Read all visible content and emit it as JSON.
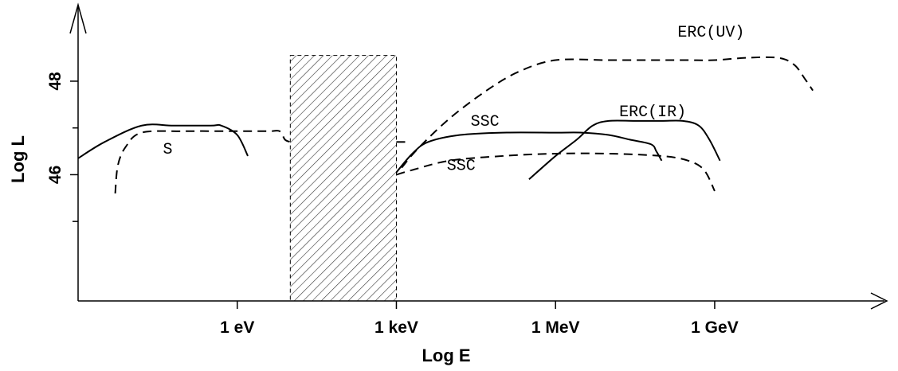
{
  "chart_data": {
    "type": "line",
    "title": "",
    "xlabel": "Log E",
    "ylabel": "Log L",
    "x_ticks": [
      {
        "label": "1 eV",
        "x": 0
      },
      {
        "label": "1 keV",
        "x": 3
      },
      {
        "label": "1 MeV",
        "x": 6
      },
      {
        "label": "1 GeV",
        "x": 9
      }
    ],
    "y_ticks": [
      {
        "label": "46",
        "y": 46
      },
      {
        "label": "48",
        "y": 48
      }
    ],
    "y_minor_ticks": [
      45,
      47
    ],
    "xlim": [
      -3,
      12.2
    ],
    "ylim": [
      43.3,
      49.6
    ],
    "grid": false,
    "shaded_band": {
      "x_range": [
        1,
        3
      ],
      "y_top": 48.55,
      "pattern": "diagonal-hatch"
    },
    "series": [
      {
        "label": "S",
        "style": "solid",
        "points": [
          [
            -3,
            46.35
          ],
          [
            -2.5,
            46.7
          ],
          [
            -1.8,
            47.05
          ],
          [
            -1.2,
            47.05
          ],
          [
            -0.5,
            47.05
          ],
          [
            -0.3,
            47.05
          ],
          [
            0,
            46.85
          ],
          [
            0.2,
            46.4
          ]
        ]
      },
      {
        "label": "",
        "style": "dashed",
        "points": [
          [
            -2.3,
            45.6
          ],
          [
            -2.25,
            46.2
          ],
          [
            -2.1,
            46.6
          ],
          [
            -1.8,
            46.9
          ],
          [
            -1,
            46.93
          ],
          [
            0,
            46.93
          ],
          [
            0.6,
            46.93
          ],
          [
            0.8,
            46.93
          ],
          [
            0.9,
            46.75
          ],
          [
            1,
            46.7
          ]
        ]
      },
      {
        "label": "",
        "style": "dashed",
        "points": [
          [
            3,
            46.7
          ],
          [
            3.2,
            46.7
          ]
        ]
      },
      {
        "label": "SSC",
        "style": "solid",
        "points": [
          [
            3,
            46.05
          ],
          [
            3.3,
            46.45
          ],
          [
            3.6,
            46.7
          ],
          [
            4.2,
            46.85
          ],
          [
            5,
            46.9
          ],
          [
            6,
            46.9
          ],
          [
            6.5,
            46.9
          ],
          [
            7,
            46.85
          ],
          [
            7.4,
            46.75
          ],
          [
            7.8,
            46.65
          ],
          [
            7.9,
            46.5
          ],
          [
            8,
            46.3
          ]
        ]
      },
      {
        "label": "SSC",
        "style": "dashed",
        "points": [
          [
            3,
            46
          ],
          [
            3.3,
            46.1
          ],
          [
            4,
            46.3
          ],
          [
            5,
            46.4
          ],
          [
            6,
            46.45
          ],
          [
            7,
            46.45
          ],
          [
            8,
            46.4
          ],
          [
            8.5,
            46.3
          ],
          [
            8.8,
            46.1
          ],
          [
            9,
            45.65
          ]
        ]
      },
      {
        "label": "ERC(IR)",
        "style": "solid",
        "points": [
          [
            5.5,
            45.9
          ],
          [
            6,
            46.4
          ],
          [
            6.4,
            46.75
          ],
          [
            6.7,
            47.05
          ],
          [
            7,
            47.15
          ],
          [
            7.5,
            47.15
          ],
          [
            8,
            47.15
          ],
          [
            8.4,
            47.15
          ],
          [
            8.7,
            47.05
          ],
          [
            8.9,
            46.75
          ],
          [
            9.1,
            46.3
          ]
        ]
      },
      {
        "label": "ERC(UV)",
        "style": "dashed",
        "points": [
          [
            3.1,
            46.15
          ],
          [
            3.4,
            46.55
          ],
          [
            4,
            47.2
          ],
          [
            4.7,
            47.8
          ],
          [
            5.3,
            48.2
          ],
          [
            6,
            48.45
          ],
          [
            7,
            48.45
          ],
          [
            8,
            48.45
          ],
          [
            8.5,
            48.45
          ],
          [
            9,
            48.45
          ],
          [
            9.6,
            48.5
          ],
          [
            10.2,
            48.5
          ],
          [
            10.5,
            48.35
          ],
          [
            10.7,
            48.05
          ],
          [
            10.85,
            47.8
          ]
        ]
      }
    ],
    "annotations": [
      {
        "text": "S",
        "x": -1.4,
        "y": 46.45
      },
      {
        "text": "SSC",
        "x": 4.4,
        "y": 47.05
      },
      {
        "text": "SSC",
        "x": 3.95,
        "y": 46.1
      },
      {
        "text": "ERC(IR)",
        "x": 7.2,
        "y": 47.25
      },
      {
        "text": "ERC(UV)",
        "x": 8.3,
        "y": 48.95
      }
    ]
  }
}
